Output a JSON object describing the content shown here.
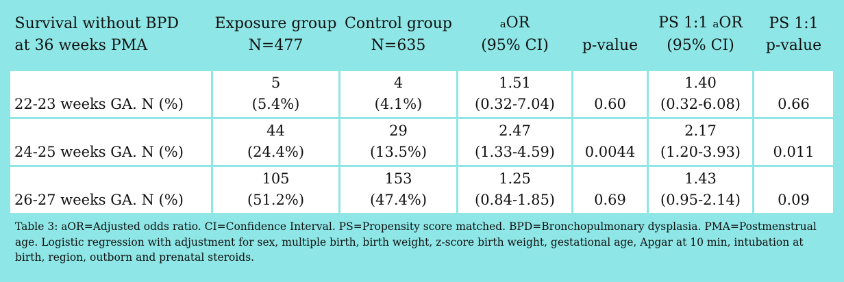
{
  "header": {
    "col1_line1": "Survival without BPD",
    "col1_line2": "at 36 weeks PMA",
    "col2_line1": "Exposure group",
    "col2_line2": "N=477",
    "col3_line1": "Control group",
    "col3_line2": "N=635",
    "col4_prefix": "a",
    "col4_line1": "OR",
    "col4_line2": "(95% CI)",
    "col5": "p-value",
    "col6_prefix": "PS 1:1 ",
    "col6_a": "a",
    "col6_line1": "OR",
    "col6_line2": "(95% CI)",
    "col7_line1": "PS 1:1",
    "col7_line2": "p-value"
  },
  "rows": [
    {
      "label": "22-23 weeks GA. N (%)",
      "exp_n": "5",
      "exp_pct": "(5.4%)",
      "ctl_n": "4",
      "ctl_pct": "(4.1%)",
      "aor": "1.51",
      "aor_ci": "(0.32-7.04)",
      "p": "0.60",
      "ps_aor": "1.40",
      "ps_ci": "(0.32-6.08)",
      "ps_p": "0.66"
    },
    {
      "label": "24-25 weeks GA. N (%)",
      "exp_n": "44",
      "exp_pct": "(24.4%)",
      "ctl_n": "29",
      "ctl_pct": "(13.5%)",
      "aor": "2.47",
      "aor_ci": "(1.33-4.59)",
      "p": "0.0044",
      "ps_aor": "2.17",
      "ps_ci": "(1.20-3.93)",
      "ps_p": "0.011"
    },
    {
      "label": "26-27 weeks GA. N (%)",
      "exp_n": "105",
      "exp_pct": "(51.2%)",
      "ctl_n": "153",
      "ctl_pct": "(47.4%)",
      "aor": "1.25",
      "aor_ci": "(0.84-1.85)",
      "p": "0.69",
      "ps_aor": "1.43",
      "ps_ci": "(0.95-2.14)",
      "ps_p": "0.09"
    }
  ],
  "caption": {
    "prefix": "Table 3: ",
    "a": "a",
    "text": "OR=Adjusted odds ratio. CI=Confidence Interval. PS=Propensity score matched. BPD=Bronchopulmonary dysplasia. PMA=Postmenstrual age. Logistic regression with adjustment for sex, multiple birth, birth weight, z-score birth weight, gestational age, Apgar at 10 min, intubation at birth, region, outborn and prenatal steroids."
  },
  "colors": {
    "background": "#8ee6e6",
    "cell": "#ffffff"
  }
}
